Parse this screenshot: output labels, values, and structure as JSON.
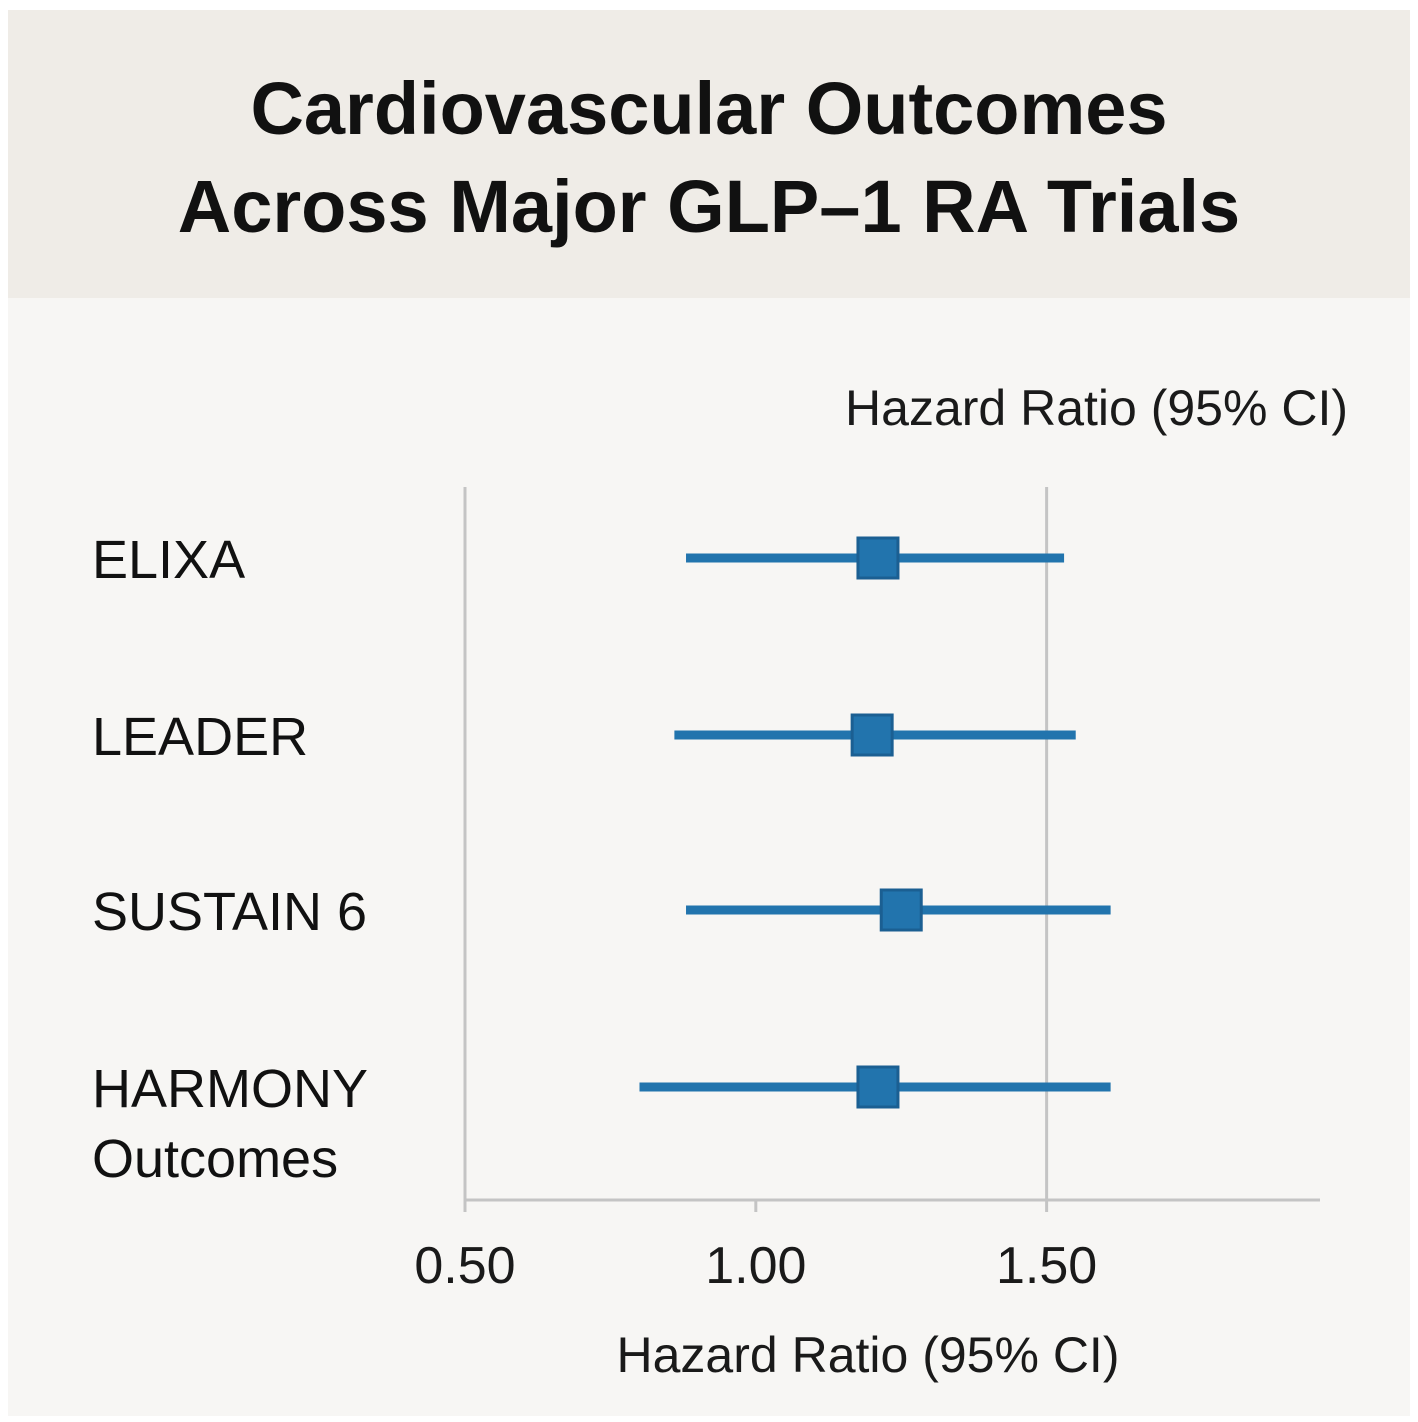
{
  "chart_data": {
    "type": "forest",
    "title": "Cardiovascular Outcomes Across Major GLP-1 RA Trials",
    "title_lines": [
      "Cardiovascular Outcomes",
      "Across Major GLP–1 RA Trials"
    ],
    "header_label": "Hazard Ratio (95% CI)",
    "xlabel": "Hazard Ratio (95% CI)",
    "xlim": [
      0.5,
      1.97
    ],
    "xticks": [
      {
        "value": 0.5,
        "label": "0.50"
      },
      {
        "value": 1.0,
        "label": "1.00"
      },
      {
        "value": 1.5,
        "label": "1.50"
      }
    ],
    "reference_lines": [
      0.5,
      1.5
    ],
    "trials": [
      {
        "name": [
          "ELIXA"
        ],
        "hr": 1.21,
        "ci": [
          0.88,
          1.53
        ]
      },
      {
        "name": [
          "LEADER"
        ],
        "hr": 1.2,
        "ci": [
          0.86,
          1.55
        ]
      },
      {
        "name": [
          "SUSTAIN 6"
        ],
        "hr": 1.25,
        "ci": [
          0.88,
          1.61
        ]
      },
      {
        "name": [
          "HARMONY",
          "Outcomes"
        ],
        "hr": 1.21,
        "ci": [
          0.8,
          1.61
        ]
      }
    ],
    "colors": {
      "marker": "#2274ad",
      "marker_stroke": "#1b5f92",
      "axis": "#c4c4c4"
    }
  }
}
